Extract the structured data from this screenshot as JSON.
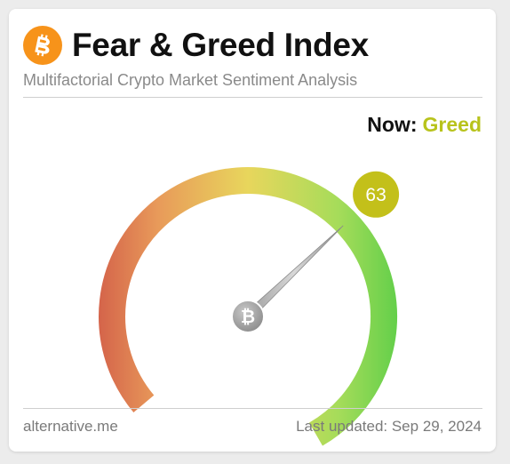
{
  "header": {
    "title": "Fear & Greed Index",
    "subtitle": "Multifactorial Crypto Market Sentiment Analysis"
  },
  "status": {
    "now_label": "Now:",
    "classification": "Greed",
    "classification_color": "#b8c31c"
  },
  "gauge": {
    "value": 63,
    "min": 0,
    "max": 100,
    "badge_color": "#c3c01a",
    "colors": [
      "#d4634a",
      "#e89a5a",
      "#e8d65c",
      "#a6dc5a",
      "#63cf4a"
    ]
  },
  "footer": {
    "source": "alternative.me",
    "updated": "Last updated: Sep 29, 2024"
  },
  "icons": {
    "logo": "bitcoin-logo-icon",
    "needle_hub": "bitcoin-icon"
  }
}
